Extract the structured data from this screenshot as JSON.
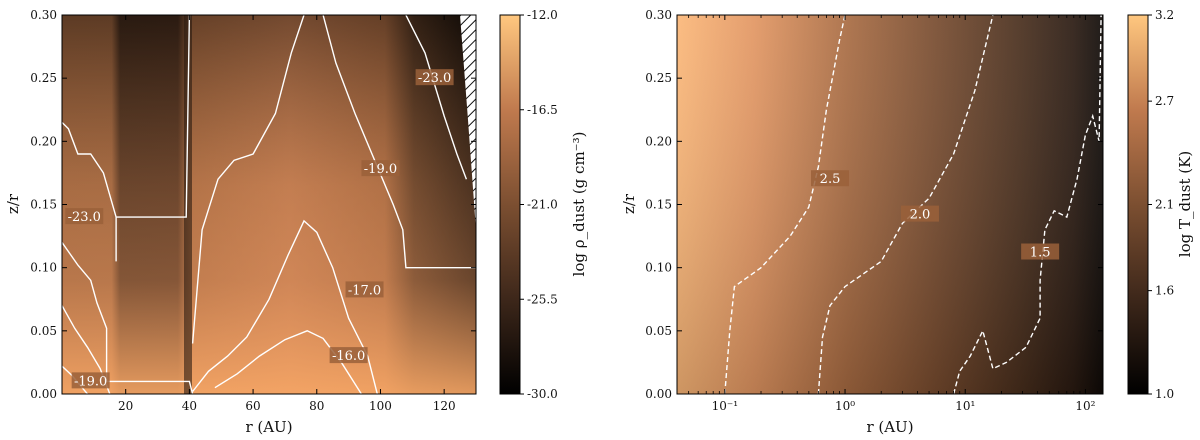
{
  "chart_data": [
    {
      "type": "heatmap",
      "title": "",
      "xlabel": "r (AU)",
      "ylabel": "z/r",
      "xlim": [
        0,
        130
      ],
      "ylim": [
        0.0,
        0.3
      ],
      "xscale": "linear",
      "x_ticks": [
        20,
        40,
        60,
        80,
        100,
        120
      ],
      "x_tick_labels": [
        "20",
        "40",
        "60",
        "80",
        "100",
        "120"
      ],
      "y_ticks": [
        0.0,
        0.05,
        0.1,
        0.15,
        0.2,
        0.25,
        0.3
      ],
      "y_tick_labels": [
        "0.00",
        "0.05",
        "0.10",
        "0.15",
        "0.20",
        "0.25",
        "0.30"
      ],
      "colormap": "copper",
      "colorbar": {
        "label": "log ρ_dust (g cm⁻³)",
        "min": -30.0,
        "max": -12.0,
        "ticks": [
          -30.0,
          -25.5,
          -21.0,
          -16.5,
          -12.0
        ],
        "tick_labels": [
          "-30.0",
          "-25.5",
          "-21.0",
          "-16.5",
          "-12.0"
        ]
      },
      "contour_style": "solid",
      "contours": [
        {
          "level": -23.0,
          "label": "-23.0",
          "label_at": [
            7,
            0.14
          ],
          "points": [
            [
              0,
              0.215
            ],
            [
              2,
              0.21
            ],
            [
              5,
              0.19
            ],
            [
              9,
              0.19
            ],
            [
              13,
              0.175
            ],
            [
              17,
              0.14
            ],
            [
              17,
              0.105
            ],
            [
              17,
              0.14
            ],
            [
              39,
              0.14
            ],
            [
              40,
              0.3
            ]
          ]
        },
        {
          "level": -23.0,
          "label": "-23.0",
          "label_at": [
            117,
            0.25
          ],
          "points": [
            [
              108,
              0.3
            ],
            [
              114,
              0.27
            ],
            [
              120,
              0.22
            ],
            [
              124,
              0.19
            ],
            [
              127,
              0.17
            ]
          ]
        },
        {
          "level": -19.0,
          "label": "-19.0",
          "label_at": [
            100,
            0.178
          ],
          "points": [
            [
              41,
              0.04
            ],
            [
              44,
              0.13
            ],
            [
              49,
              0.17
            ],
            [
              54,
              0.185
            ],
            [
              60,
              0.19
            ],
            [
              67,
              0.222
            ],
            [
              72,
              0.27
            ],
            [
              76,
              0.3
            ]
          ]
        },
        {
          "level": -19.0,
          "label": "",
          "label_at": null,
          "points": [
            [
              82,
              0.3
            ],
            [
              86,
              0.262
            ],
            [
              92,
              0.222
            ],
            [
              99,
              0.18
            ],
            [
              104,
              0.15
            ],
            [
              107,
              0.13
            ],
            [
              108,
              0.1
            ],
            [
              130,
              0.1
            ]
          ]
        },
        {
          "level": -19.0,
          "label": "-19.0",
          "label_at": [
            9,
            0.01
          ],
          "points": [
            [
              0,
              0.12
            ],
            [
              5,
              0.102
            ],
            [
              9,
              0.09
            ],
            [
              11,
              0.072
            ],
            [
              14,
              0.052
            ],
            [
              14,
              0.01
            ],
            [
              40,
              0.01
            ],
            [
              41,
              0.0
            ]
          ]
        },
        {
          "level": -17.0,
          "label": "-17.0",
          "label_at": [
            95,
            0.082
          ],
          "points": [
            [
              41,
              0.002
            ],
            [
              46,
              0.018
            ],
            [
              52,
              0.03
            ],
            [
              58,
              0.045
            ],
            [
              65,
              0.075
            ],
            [
              71,
              0.11
            ],
            [
              76,
              0.137
            ],
            [
              80,
              0.128
            ],
            [
              85,
              0.1
            ],
            [
              90,
              0.06
            ],
            [
              96,
              0.03
            ],
            [
              99,
              0.0
            ]
          ]
        },
        {
          "level": -17.0,
          "label": "",
          "label_at": null,
          "points": [
            [
              0,
              0.07
            ],
            [
              4,
              0.052
            ],
            [
              8,
              0.037
            ],
            [
              12,
              0.02
            ],
            [
              15,
              0.0
            ]
          ]
        },
        {
          "level": -16.0,
          "label": "-16.0",
          "label_at": [
            90,
            0.03
          ],
          "points": [
            [
              48,
              0.005
            ],
            [
              55,
              0.016
            ],
            [
              62,
              0.03
            ],
            [
              70,
              0.043
            ],
            [
              77,
              0.05
            ],
            [
              82,
              0.044
            ],
            [
              88,
              0.024
            ],
            [
              94,
              0.0
            ]
          ]
        },
        {
          "level": -16.0,
          "label": "",
          "label_at": null,
          "points": [
            [
              0,
              0.022
            ],
            [
              3,
              0.015
            ],
            [
              6,
              0.006
            ],
            [
              8,
              0.0
            ]
          ]
        }
      ]
    },
    {
      "type": "heatmap",
      "title": "",
      "xlabel": "r (AU)",
      "ylabel": "z/r",
      "xlim": [
        0.04,
        140
      ],
      "ylim": [
        0.0,
        0.3
      ],
      "xscale": "log",
      "x_ticks": [
        0.1,
        1,
        10,
        100
      ],
      "x_tick_labels": [
        "10⁻¹",
        "10⁰",
        "10¹",
        "10²"
      ],
      "y_ticks": [
        0.0,
        0.05,
        0.1,
        0.15,
        0.2,
        0.25,
        0.3
      ],
      "y_tick_labels": [
        "0.00",
        "0.05",
        "0.10",
        "0.15",
        "0.20",
        "0.25",
        "0.30"
      ],
      "colormap": "copper",
      "colorbar": {
        "label": "log T_dust (K)",
        "min": 1.0,
        "max": 3.2,
        "ticks": [
          1.0,
          1.6,
          2.1,
          2.7,
          3.2
        ],
        "tick_labels": [
          "1.0",
          "1.6",
          "2.1",
          "2.7",
          "3.2"
        ]
      },
      "contour_style": "dashed",
      "contours": [
        {
          "level": 2.5,
          "label": "2.5",
          "label_at": [
            0.75,
            0.17
          ],
          "points": [
            [
              0.1,
              0.0
            ],
            [
              0.11,
              0.05
            ],
            [
              0.12,
              0.085
            ],
            [
              0.2,
              0.1
            ],
            [
              0.35,
              0.125
            ],
            [
              0.5,
              0.148
            ],
            [
              0.6,
              0.18
            ],
            [
              0.7,
              0.225
            ],
            [
              0.9,
              0.28
            ],
            [
              1.0,
              0.3
            ]
          ]
        },
        {
          "level": 2.0,
          "label": "2.0",
          "label_at": [
            4.2,
            0.142
          ],
          "points": [
            [
              0.6,
              0.0
            ],
            [
              0.65,
              0.045
            ],
            [
              0.75,
              0.07
            ],
            [
              1.0,
              0.085
            ],
            [
              2.0,
              0.105
            ],
            [
              3.0,
              0.135
            ],
            [
              5.0,
              0.155
            ],
            [
              8.0,
              0.19
            ],
            [
              12.0,
              0.24
            ],
            [
              17.0,
              0.3
            ]
          ]
        },
        {
          "level": 1.5,
          "label": "1.5",
          "label_at": [
            42,
            0.112
          ],
          "points": [
            [
              8.0,
              0.0
            ],
            [
              9.0,
              0.018
            ],
            [
              11.0,
              0.03
            ],
            [
              14.0,
              0.05
            ],
            [
              17.0,
              0.02
            ],
            [
              22.0,
              0.025
            ],
            [
              32.0,
              0.037
            ],
            [
              42.0,
              0.06
            ],
            [
              42.0,
              0.09
            ],
            [
              46.0,
              0.13
            ],
            [
              55.0,
              0.145
            ],
            [
              70.0,
              0.14
            ],
            [
              85.0,
              0.17
            ],
            [
              100.0,
              0.205
            ],
            [
              115.0,
              0.22
            ],
            [
              130.0,
              0.2
            ],
            [
              135.0,
              0.3
            ]
          ]
        }
      ]
    }
  ]
}
